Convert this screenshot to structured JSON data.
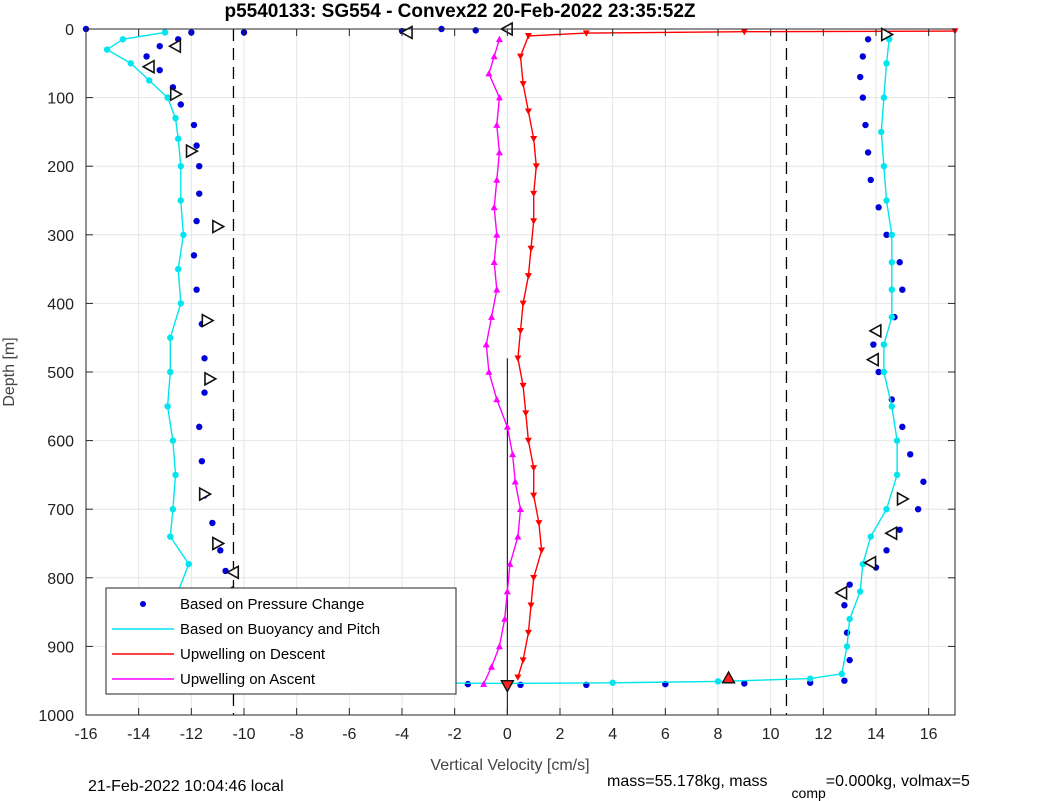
{
  "chart_data": {
    "type": "scatter",
    "title": "p5540133: SG554 - Convex22 20-Feb-2022 23:35:52Z",
    "xlabel": "Vertical Velocity [cm/s]",
    "ylabel": "Depth [m]",
    "xlim": [
      -16,
      17
    ],
    "ylim": [
      0,
      1000
    ],
    "y_reversed": true,
    "grid": true,
    "xticks": [
      -16,
      -14,
      -12,
      -10,
      -8,
      -6,
      -4,
      -2,
      0,
      2,
      4,
      6,
      8,
      10,
      12,
      14,
      16
    ],
    "yticks": [
      0,
      100,
      200,
      300,
      400,
      500,
      600,
      700,
      800,
      900,
      1000
    ],
    "reference_lines_x": [
      -10.4,
      10.6
    ],
    "zero_line_x": 0,
    "legend_position": "bottom-left",
    "series": [
      {
        "name": "Based on Pressure Change",
        "color": "#0000d8",
        "style": "dots",
        "points": [
          [
            -12.5,
            15
          ],
          [
            -13.2,
            25
          ],
          [
            -13.7,
            40
          ],
          [
            -13.2,
            60
          ],
          [
            -12.7,
            85
          ],
          [
            -12.4,
            110
          ],
          [
            -11.9,
            140
          ],
          [
            -11.8,
            170
          ],
          [
            -11.7,
            200
          ],
          [
            -11.7,
            240
          ],
          [
            -11.8,
            280
          ],
          [
            -11.9,
            330
          ],
          [
            -11.8,
            380
          ],
          [
            -11.6,
            430
          ],
          [
            -11.5,
            480
          ],
          [
            -11.5,
            530
          ],
          [
            -11.7,
            580
          ],
          [
            -11.6,
            630
          ],
          [
            -11.5,
            680
          ],
          [
            -11.2,
            720
          ],
          [
            -10.9,
            760
          ],
          [
            -10.7,
            790
          ],
          [
            -11.1,
            820
          ],
          [
            -11.4,
            860
          ],
          [
            -11.5,
            900
          ],
          [
            -11.5,
            935
          ],
          [
            -11.2,
            955
          ],
          [
            -9.5,
            955
          ],
          [
            -7.0,
            956
          ],
          [
            -4.0,
            956
          ],
          [
            -1.5,
            955
          ],
          [
            13.7,
            15
          ],
          [
            13.5,
            40
          ],
          [
            13.4,
            70
          ],
          [
            13.5,
            100
          ],
          [
            13.6,
            140
          ],
          [
            13.7,
            180
          ],
          [
            13.8,
            220
          ],
          [
            14.1,
            260
          ],
          [
            14.4,
            300
          ],
          [
            14.9,
            340
          ],
          [
            15.0,
            380
          ],
          [
            14.7,
            420
          ],
          [
            13.9,
            460
          ],
          [
            14.1,
            500
          ],
          [
            14.6,
            540
          ],
          [
            15.0,
            580
          ],
          [
            15.3,
            620
          ],
          [
            15.8,
            660
          ],
          [
            15.6,
            700
          ],
          [
            14.9,
            730
          ],
          [
            14.4,
            760
          ],
          [
            14.0,
            785
          ],
          [
            13.0,
            810
          ],
          [
            12.8,
            840
          ],
          [
            12.9,
            880
          ],
          [
            13.0,
            920
          ],
          [
            12.8,
            950
          ],
          [
            11.5,
            953
          ],
          [
            9.0,
            954
          ],
          [
            6.0,
            955
          ],
          [
            3.0,
            956
          ],
          [
            0.5,
            956
          ],
          [
            -16.0,
            0
          ],
          [
            -12.0,
            5
          ],
          [
            -10.0,
            5
          ],
          [
            -4.0,
            3
          ],
          [
            -2.5,
            0
          ],
          [
            -1.2,
            2
          ]
        ]
      },
      {
        "name": "Based on Buoyancy and Pitch",
        "color": "#00e5ee",
        "style": "line-dots",
        "points": [
          [
            -13.0,
            5
          ],
          [
            -14.6,
            15
          ],
          [
            -15.2,
            30
          ],
          [
            -14.3,
            50
          ],
          [
            -13.6,
            75
          ],
          [
            -12.9,
            100
          ],
          [
            -12.6,
            130
          ],
          [
            -12.5,
            160
          ],
          [
            -12.4,
            200
          ],
          [
            -12.4,
            250
          ],
          [
            -12.3,
            300
          ],
          [
            -12.5,
            350
          ],
          [
            -12.4,
            400
          ],
          [
            -12.8,
            450
          ],
          [
            -12.8,
            500
          ],
          [
            -12.9,
            550
          ],
          [
            -12.7,
            600
          ],
          [
            -12.6,
            650
          ],
          [
            -12.7,
            700
          ],
          [
            -12.8,
            740
          ],
          [
            -12.1,
            780
          ],
          [
            -12.5,
            820
          ],
          [
            -12.4,
            860
          ],
          [
            -12.3,
            900
          ],
          [
            -11.9,
            940
          ],
          [
            -11.0,
            950
          ],
          [
            -8.0,
            952
          ],
          [
            -4.0,
            953
          ],
          [
            0.0,
            954
          ],
          [
            4.0,
            953
          ],
          [
            8.0,
            951
          ],
          [
            11.5,
            947
          ],
          [
            12.7,
            940
          ],
          [
            12.9,
            900
          ],
          [
            13.0,
            860
          ],
          [
            13.4,
            820
          ],
          [
            13.5,
            780
          ],
          [
            13.8,
            740
          ],
          [
            14.4,
            700
          ],
          [
            14.8,
            650
          ],
          [
            14.8,
            600
          ],
          [
            14.6,
            550
          ],
          [
            14.3,
            500
          ],
          [
            14.3,
            460
          ],
          [
            14.6,
            420
          ],
          [
            14.6,
            380
          ],
          [
            14.6,
            340
          ],
          [
            14.6,
            300
          ],
          [
            14.4,
            250
          ],
          [
            14.3,
            200
          ],
          [
            14.2,
            150
          ],
          [
            14.3,
            100
          ],
          [
            14.4,
            50
          ],
          [
            14.5,
            15
          ]
        ]
      },
      {
        "name": "Upwelling on Descent",
        "color": "#ff0000",
        "style": "line-triangles-down",
        "points": [
          [
            17.0,
            3
          ],
          [
            9.0,
            4
          ],
          [
            3.0,
            6
          ],
          [
            0.8,
            10
          ],
          [
            0.5,
            40
          ],
          [
            0.6,
            80
          ],
          [
            0.8,
            120
          ],
          [
            1.0,
            160
          ],
          [
            1.1,
            200
          ],
          [
            1.0,
            240
          ],
          [
            1.0,
            280
          ],
          [
            0.9,
            320
          ],
          [
            0.8,
            360
          ],
          [
            0.6,
            400
          ],
          [
            0.5,
            440
          ],
          [
            0.4,
            480
          ],
          [
            0.6,
            520
          ],
          [
            0.7,
            560
          ],
          [
            0.8,
            600
          ],
          [
            1.0,
            640
          ],
          [
            1.0,
            680
          ],
          [
            1.2,
            720
          ],
          [
            1.3,
            760
          ],
          [
            1.0,
            800
          ],
          [
            0.9,
            840
          ],
          [
            0.8,
            880
          ],
          [
            0.6,
            920
          ],
          [
            0.4,
            945
          ]
        ]
      },
      {
        "name": "Upwelling on Ascent",
        "color": "#ff00ff",
        "style": "line-triangles-up",
        "points": [
          [
            -0.9,
            955
          ],
          [
            -0.6,
            930
          ],
          [
            -0.3,
            900
          ],
          [
            -0.1,
            860
          ],
          [
            0.0,
            820
          ],
          [
            0.1,
            780
          ],
          [
            0.4,
            740
          ],
          [
            0.5,
            700
          ],
          [
            0.3,
            660
          ],
          [
            0.2,
            620
          ],
          [
            0.0,
            580
          ],
          [
            -0.4,
            540
          ],
          [
            -0.7,
            500
          ],
          [
            -0.8,
            460
          ],
          [
            -0.6,
            420
          ],
          [
            -0.4,
            380
          ],
          [
            -0.5,
            340
          ],
          [
            -0.4,
            300
          ],
          [
            -0.5,
            260
          ],
          [
            -0.4,
            220
          ],
          [
            -0.3,
            180
          ],
          [
            -0.4,
            140
          ],
          [
            -0.3,
            100
          ],
          [
            -0.7,
            65
          ],
          [
            -0.5,
            40
          ],
          [
            -0.3,
            15
          ]
        ]
      }
    ],
    "markers_open": [
      {
        "x": -12.6,
        "y": 25,
        "dir": "left"
      },
      {
        "x": -13.6,
        "y": 55,
        "dir": "left"
      },
      {
        "x": -12.6,
        "y": 95,
        "dir": "right"
      },
      {
        "x": -12.0,
        "y": 178,
        "dir": "right"
      },
      {
        "x": -11.0,
        "y": 288,
        "dir": "right"
      },
      {
        "x": -11.4,
        "y": 425,
        "dir": "right"
      },
      {
        "x": -11.3,
        "y": 510,
        "dir": "right"
      },
      {
        "x": -11.5,
        "y": 678,
        "dir": "right"
      },
      {
        "x": -11.0,
        "y": 750,
        "dir": "right"
      },
      {
        "x": -10.4,
        "y": 792,
        "dir": "left"
      },
      {
        "x": -10.6,
        "y": 822,
        "dir": "left"
      },
      {
        "x": -11.5,
        "y": 932,
        "dir": "left"
      },
      {
        "x": -3.8,
        "y": 5,
        "dir": "left"
      },
      {
        "x": 0.0,
        "y": 0,
        "dir": "left"
      },
      {
        "x": 14.4,
        "y": 8,
        "dir": "right"
      },
      {
        "x": 14.0,
        "y": 440,
        "dir": "left"
      },
      {
        "x": 13.9,
        "y": 482,
        "dir": "left"
      },
      {
        "x": 15.0,
        "y": 685,
        "dir": "right"
      },
      {
        "x": 14.6,
        "y": 735,
        "dir": "left"
      },
      {
        "x": 13.8,
        "y": 778,
        "dir": "left"
      },
      {
        "x": 12.7,
        "y": 822,
        "dir": "left"
      }
    ],
    "markers_filled": [
      {
        "x": 8.4,
        "y": 946,
        "color": "#ff2020",
        "dir": "up"
      },
      {
        "x": -11.0,
        "y": 955,
        "color": "#ff2020",
        "dir": "down"
      },
      {
        "x": 0.0,
        "y": 957,
        "color": "#ff2020",
        "dir": "down"
      }
    ]
  },
  "footer": {
    "local_time": "21-Feb-2022 10:04:46 local",
    "mass_text": "mass=55.178kg, mass",
    "comp_subscript": "comp",
    "comp_text": "=0.000kg, volmax=5"
  }
}
